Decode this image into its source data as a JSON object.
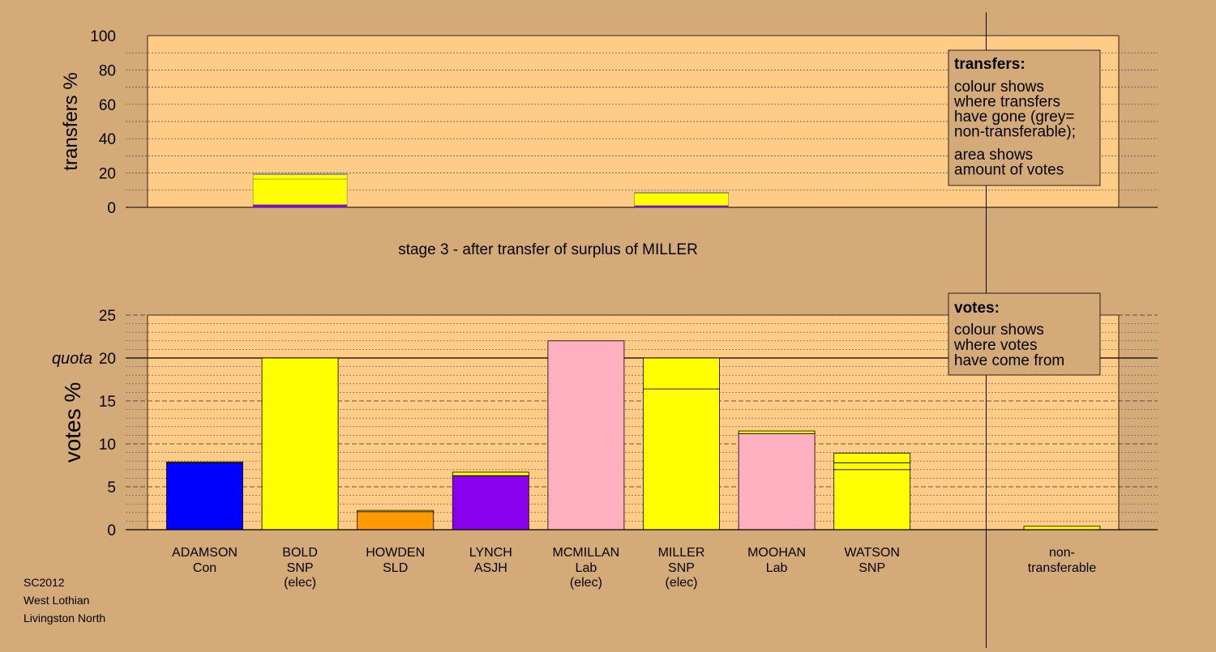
{
  "colors": {
    "background": "#d4aa78",
    "plot_area": "#ffcc88",
    "con": "#0000ff",
    "snp": "#ffff00",
    "sld": "#ff9900",
    "asjh": "#8800ee",
    "lab": "#ffb0c0",
    "nontransferable": "#bbbbbb"
  },
  "chart_data": [
    {
      "type": "bar",
      "ylabel": "transfers %",
      "ylim": [
        0,
        100
      ],
      "ticks": [
        0,
        20,
        40,
        60,
        80,
        100
      ],
      "bars": [
        {
          "candidate": "BOLD",
          "segments": [
            {
              "color": "#8800ee",
              "value": 1.5
            },
            {
              "color": "#ffff00",
              "value": 15
            },
            {
              "color": "#ffff00",
              "value": 2.5
            },
            {
              "color": "#bbbbbb",
              "value": 0.8
            }
          ]
        },
        {
          "candidate": "MILLER",
          "segments": [
            {
              "color": "#8800ee",
              "value": 1
            },
            {
              "color": "#ffff00",
              "value": 7.3
            },
            {
              "color": "#bbbbbb",
              "value": 0.6
            }
          ]
        }
      ],
      "legend": {
        "title": "transfers:",
        "lines1": [
          "colour shows",
          "where transfers",
          "have gone (grey=",
          "non-transferable);"
        ],
        "lines2": [
          "area shows",
          "amount of votes"
        ]
      }
    },
    {
      "type": "bar",
      "ylabel": "votes %",
      "ylim": [
        0,
        25
      ],
      "ticks": [
        0,
        5,
        10,
        15,
        20,
        25
      ],
      "quota": 20,
      "quota_label": "quota",
      "bars": [
        {
          "name": "ADAMSON",
          "party": "Con",
          "status": "",
          "segments": [
            {
              "color": "#0000ff",
              "value": 7.8
            },
            {
              "color": "#ffff00",
              "value": 0.1
            }
          ]
        },
        {
          "name": "BOLD",
          "party": "SNP",
          "status": "(elec)",
          "segments": [
            {
              "color": "#ffff00",
              "value": 20
            }
          ]
        },
        {
          "name": "HOWDEN",
          "party": "SLD",
          "status": "",
          "segments": [
            {
              "color": "#ff9900",
              "value": 2.1
            },
            {
              "color": "#ffff00",
              "value": 0.15
            }
          ]
        },
        {
          "name": "LYNCH",
          "party": "ASJH",
          "status": "",
          "segments": [
            {
              "color": "#8800ee",
              "value": 6.3
            },
            {
              "color": "#ffff00",
              "value": 0.4
            }
          ]
        },
        {
          "name": "MCMILLAN",
          "party": "Lab",
          "status": "(elec)",
          "segments": [
            {
              "color": "#ffb0c0",
              "value": 22
            }
          ]
        },
        {
          "name": "MILLER",
          "party": "SNP",
          "status": "(elec)",
          "segments": [
            {
              "color": "#ffff00",
              "value": 16.4
            },
            {
              "color": "#ffff00",
              "value": 3.6
            }
          ]
        },
        {
          "name": "MOOHAN",
          "party": "Lab",
          "status": "",
          "segments": [
            {
              "color": "#ffb0c0",
              "value": 11.2
            },
            {
              "color": "#ffff00",
              "value": 0.3
            }
          ]
        },
        {
          "name": "WATSON",
          "party": "SNP",
          "status": "",
          "segments": [
            {
              "color": "#ffff00",
              "value": 7
            },
            {
              "color": "#ffff00",
              "value": 0.8
            },
            {
              "color": "#ffff00",
              "value": 1.1
            }
          ]
        }
      ],
      "nontransferable": {
        "name": "non-",
        "party": "transferable",
        "value": 0.4
      },
      "legend": {
        "title": "votes:",
        "lines": [
          "colour shows",
          "where votes",
          "have come from"
        ]
      }
    }
  ],
  "stage_title": "stage 3 - after transfer of surplus of MILLER",
  "footer": [
    "SC2012",
    "West Lothian",
    "Livingston North"
  ]
}
